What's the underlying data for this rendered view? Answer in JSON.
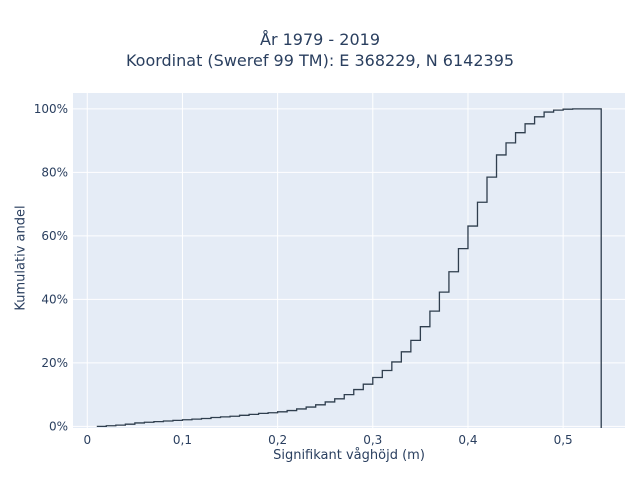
{
  "colors": {
    "plot_bg": "#e5ecf6",
    "grid": "#ffffff",
    "line": "#2f3e4e",
    "text": "#2a3f5f"
  },
  "chart_data": {
    "type": "line",
    "line_shape": "step",
    "title": "År 1979 - 2019",
    "subtitle": "Koordinat (Sweref 99 TM): E 368229, N 6142395",
    "xlabel": "Signifikant våghöjd (m)",
    "ylabel": "Kumulativ andel",
    "xlim": [
      -0.015,
      0.565
    ],
    "ylim": [
      -0.005,
      1.05
    ],
    "grid": true,
    "x_ticks": [
      0,
      0.1,
      0.2,
      0.3,
      0.4,
      0.5
    ],
    "x_tick_labels": [
      "0",
      "0,1",
      "0,2",
      "0,3",
      "0,4",
      "0,5"
    ],
    "y_ticks": [
      0,
      0.2,
      0.4,
      0.6,
      0.8,
      1.0
    ],
    "y_tick_labels": [
      "0%",
      "20%",
      "40%",
      "60%",
      "80%",
      "100%"
    ],
    "series": [
      {
        "x": [
          0.01,
          0.02,
          0.03,
          0.04,
          0.05,
          0.06,
          0.07,
          0.08,
          0.09,
          0.1,
          0.11,
          0.12,
          0.13,
          0.14,
          0.15,
          0.16,
          0.17,
          0.18,
          0.19,
          0.2,
          0.21,
          0.22,
          0.23,
          0.24,
          0.25,
          0.26,
          0.27,
          0.28,
          0.29,
          0.3,
          0.31,
          0.32,
          0.33,
          0.34,
          0.35,
          0.36,
          0.37,
          0.38,
          0.39,
          0.4,
          0.41,
          0.42,
          0.43,
          0.44,
          0.45,
          0.46,
          0.47,
          0.48,
          0.49,
          0.5,
          0.51,
          0.52,
          0.53,
          0.54
        ],
        "y": [
          0.0,
          0.002,
          0.004,
          0.007,
          0.011,
          0.013,
          0.015,
          0.017,
          0.019,
          0.021,
          0.023,
          0.025,
          0.028,
          0.03,
          0.032,
          0.035,
          0.038,
          0.041,
          0.043,
          0.046,
          0.05,
          0.055,
          0.061,
          0.068,
          0.077,
          0.087,
          0.1,
          0.116,
          0.133,
          0.154,
          0.176,
          0.203,
          0.235,
          0.271,
          0.314,
          0.363,
          0.423,
          0.487,
          0.56,
          0.631,
          0.706,
          0.785,
          0.855,
          0.893,
          0.925,
          0.953,
          0.975,
          0.99,
          0.996,
          0.999,
          1.0,
          1.0,
          1.0,
          1.0
        ]
      }
    ]
  }
}
